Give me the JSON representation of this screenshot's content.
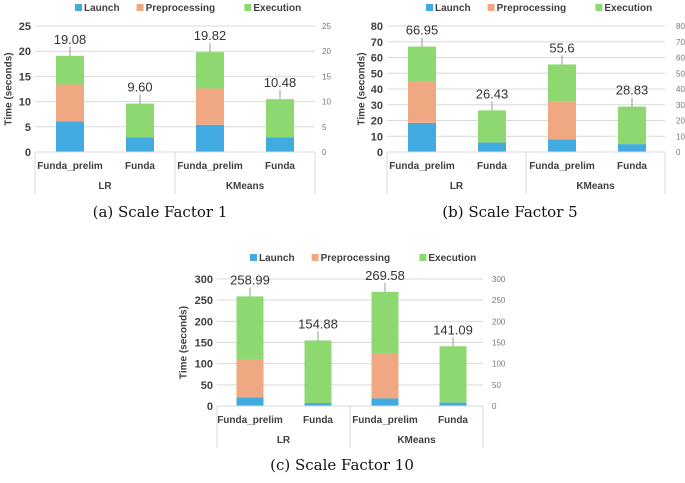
{
  "colors": {
    "Launch": "#41ABE1",
    "Preprocessing": "#F0A883",
    "Execution": "#8ED872",
    "grid": "#d9d9d9",
    "axis_text": "#404040"
  },
  "chart_data": [
    {
      "type": "bar",
      "stacked": true,
      "caption": "(a) Scale Factor 1",
      "ylabel": "Time (seconds)",
      "ylim": [
        0,
        25
      ],
      "yticks": [
        0,
        5,
        10,
        15,
        20,
        25
      ],
      "secondary_yticks": [
        0,
        5,
        10,
        15,
        20,
        25
      ],
      "grid": true,
      "legend": "top",
      "groups": [
        "LR",
        "KMeans"
      ],
      "categories": [
        "Funda_prelim",
        "Funda",
        "Funda_prelim",
        "Funda"
      ],
      "series": [
        {
          "name": "Launch",
          "values": [
            6.1,
            2.9,
            5.4,
            2.9
          ]
        },
        {
          "name": "Preprocessing",
          "values": [
            7.3,
            0,
            7.2,
            0
          ]
        },
        {
          "name": "Execution",
          "values": [
            5.68,
            6.7,
            7.22,
            7.58
          ]
        }
      ],
      "totals": [
        "19.08",
        "9.60",
        "19.82",
        "10.48"
      ]
    },
    {
      "type": "bar",
      "stacked": true,
      "caption": "(b) Scale Factor 5",
      "ylabel": "Time (seconds)",
      "ylim": [
        0,
        80
      ],
      "yticks": [
        0,
        10,
        20,
        30,
        40,
        50,
        60,
        70,
        80
      ],
      "secondary_yticks": [
        0,
        10,
        20,
        30,
        40,
        50,
        60,
        70,
        80
      ],
      "grid": true,
      "legend": "top",
      "groups": [
        "LR",
        "KMeans"
      ],
      "categories": [
        "Funda_prelim",
        "Funda",
        "Funda_prelim",
        "Funda"
      ],
      "series": [
        {
          "name": "Launch",
          "values": [
            18.5,
            6,
            8,
            5
          ]
        },
        {
          "name": "Preprocessing",
          "values": [
            26,
            0,
            24,
            0
          ]
        },
        {
          "name": "Execution",
          "values": [
            22.45,
            20.43,
            23.6,
            23.83
          ]
        }
      ],
      "totals": [
        "66.95",
        "26.43",
        "55.6",
        "28.83"
      ]
    },
    {
      "type": "bar",
      "stacked": true,
      "caption": "(c) Scale Factor 10",
      "ylabel": "Time (seconds)",
      "ylim": [
        0,
        300
      ],
      "yticks": [
        0,
        50,
        100,
        150,
        200,
        250,
        300
      ],
      "secondary_yticks": [
        0,
        50,
        100,
        150,
        200,
        250,
        300
      ],
      "grid": true,
      "legend": "top",
      "groups": [
        "LR",
        "KMeans"
      ],
      "categories": [
        "Funda_prelim",
        "Funda",
        "Funda_prelim",
        "Funda"
      ],
      "series": [
        {
          "name": "Launch",
          "values": [
            20,
            7,
            18,
            8
          ]
        },
        {
          "name": "Preprocessing",
          "values": [
            90,
            0,
            105,
            0
          ]
        },
        {
          "name": "Execution",
          "values": [
            148.99,
            147.88,
            146.58,
            133.09
          ]
        }
      ],
      "totals": [
        "258.99",
        "154.88",
        "269.58",
        "141.09"
      ]
    }
  ]
}
